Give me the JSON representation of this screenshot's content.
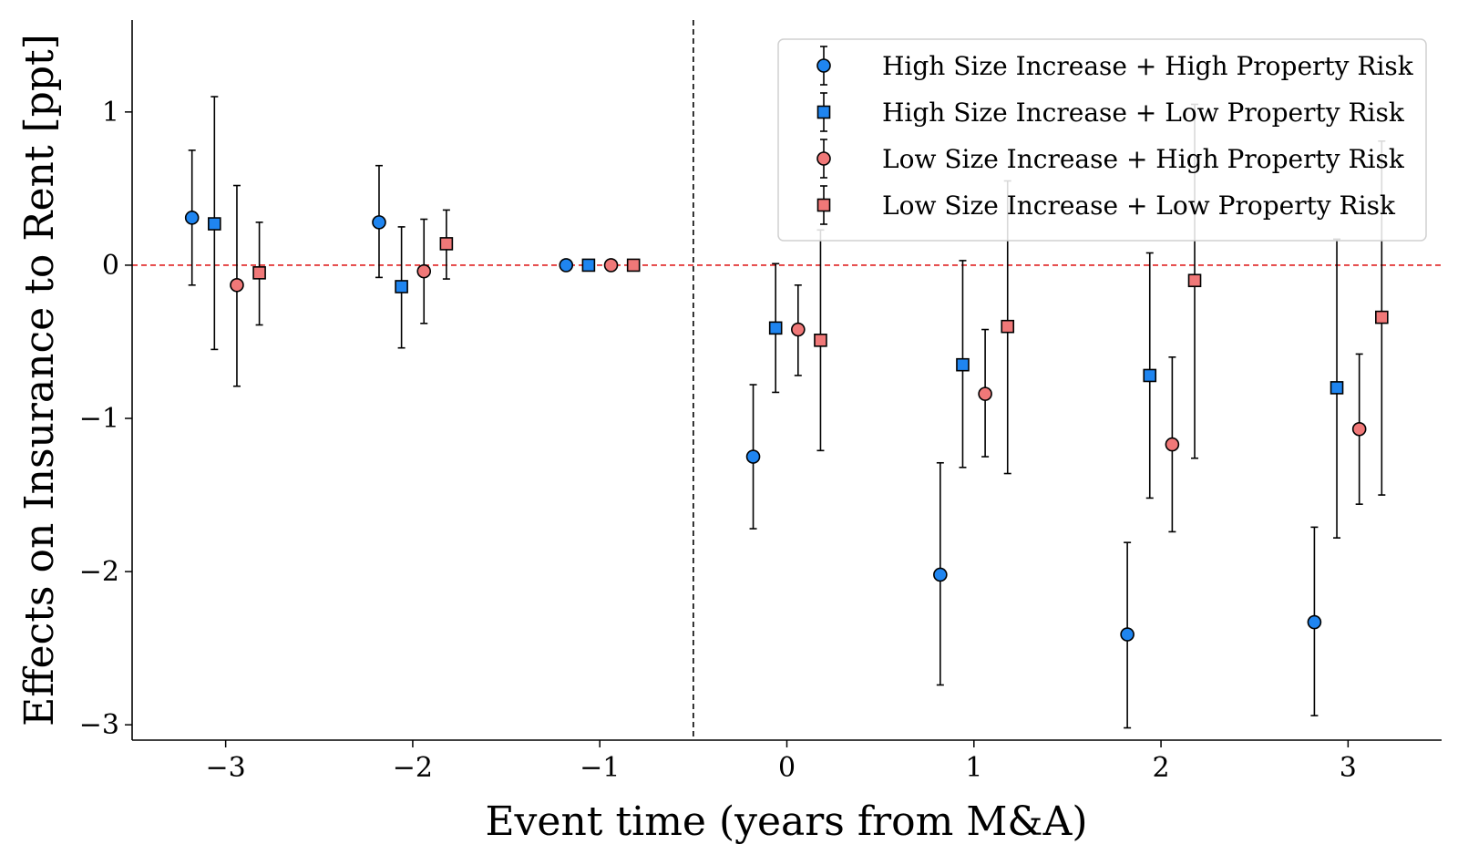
{
  "chart_data": {
    "type": "scatter",
    "subtype": "event-study coefficient plot with error bars",
    "xlabel": "Event time (years from M&A)",
    "ylabel": "Effects on Insurance to Rent [ppt]",
    "xlim": [
      -3.5,
      3.5
    ],
    "ylim": [
      -3.1,
      1.6
    ],
    "xticks": [
      -3,
      -2,
      -1,
      0,
      1,
      2,
      3
    ],
    "xtick_labels": [
      "−3",
      "−2",
      "−1",
      "0",
      "1",
      "2",
      "3"
    ],
    "yticks": [
      -3,
      -2,
      -1,
      0,
      1
    ],
    "ytick_labels": [
      "−3",
      "−2",
      "−1",
      "0",
      "1"
    ],
    "reference_lines": [
      {
        "orientation": "horizontal",
        "value": 0,
        "style": "dashed",
        "color": "#e02020"
      },
      {
        "orientation": "vertical",
        "value": -0.5,
        "style": "dashed",
        "color": "#000000"
      }
    ],
    "grid": false,
    "legend_position": "upper right",
    "series": [
      {
        "name": "High Size Increase + High Property Risk",
        "marker": "circle",
        "color": "#1f85f0",
        "points": [
          {
            "x": -3.18,
            "y": 0.31,
            "lo": -0.13,
            "hi": 0.75
          },
          {
            "x": -2.18,
            "y": 0.28,
            "lo": -0.08,
            "hi": 0.65
          },
          {
            "x": -1.18,
            "y": 0.0,
            "lo": 0.0,
            "hi": 0.0
          },
          {
            "x": -0.18,
            "y": -1.25,
            "lo": -1.72,
            "hi": -0.78
          },
          {
            "x": 0.82,
            "y": -2.02,
            "lo": -2.74,
            "hi": -1.29
          },
          {
            "x": 1.82,
            "y": -2.41,
            "lo": -3.02,
            "hi": -1.81
          },
          {
            "x": 2.82,
            "y": -2.33,
            "lo": -2.94,
            "hi": -1.71
          }
        ]
      },
      {
        "name": "High Size Increase + Low Property Risk",
        "marker": "square",
        "color": "#1f85f0",
        "points": [
          {
            "x": -3.06,
            "y": 0.27,
            "lo": -0.55,
            "hi": 1.1
          },
          {
            "x": -2.06,
            "y": -0.14,
            "lo": -0.54,
            "hi": 0.25
          },
          {
            "x": -1.06,
            "y": 0.0,
            "lo": 0.0,
            "hi": 0.0
          },
          {
            "x": -0.06,
            "y": -0.41,
            "lo": -0.83,
            "hi": 0.01
          },
          {
            "x": 0.94,
            "y": -0.65,
            "lo": -1.32,
            "hi": 0.03
          },
          {
            "x": 1.94,
            "y": -0.72,
            "lo": -1.52,
            "hi": 0.08
          },
          {
            "x": 2.94,
            "y": -0.8,
            "lo": -1.78,
            "hi": 0.17
          }
        ]
      },
      {
        "name": "Low Size Increase + High Property Risk",
        "marker": "circle",
        "color": "#f07878",
        "points": [
          {
            "x": -2.94,
            "y": -0.13,
            "lo": -0.79,
            "hi": 0.52
          },
          {
            "x": -1.94,
            "y": -0.04,
            "lo": -0.38,
            "hi": 0.3
          },
          {
            "x": -0.94,
            "y": 0.0,
            "lo": 0.0,
            "hi": 0.0
          },
          {
            "x": 0.06,
            "y": -0.42,
            "lo": -0.72,
            "hi": -0.13
          },
          {
            "x": 1.06,
            "y": -0.84,
            "lo": -1.25,
            "hi": -0.42
          },
          {
            "x": 2.06,
            "y": -1.17,
            "lo": -1.74,
            "hi": -0.6
          },
          {
            "x": 3.06,
            "y": -1.07,
            "lo": -1.56,
            "hi": -0.58
          }
        ]
      },
      {
        "name": "Low Size Increase + Low Property Risk",
        "marker": "square",
        "color": "#f07878",
        "points": [
          {
            "x": -2.82,
            "y": -0.05,
            "lo": -0.39,
            "hi": 0.28
          },
          {
            "x": -1.82,
            "y": 0.14,
            "lo": -0.09,
            "hi": 0.36
          },
          {
            "x": -0.82,
            "y": 0.0,
            "lo": 0.0,
            "hi": 0.0
          },
          {
            "x": 0.18,
            "y": -0.49,
            "lo": -1.21,
            "hi": 0.23
          },
          {
            "x": 1.18,
            "y": -0.4,
            "lo": -1.36,
            "hi": 0.55
          },
          {
            "x": 2.18,
            "y": -0.1,
            "lo": -1.26,
            "hi": 1.05
          },
          {
            "x": 3.18,
            "y": -0.34,
            "lo": -1.5,
            "hi": 0.81
          }
        ]
      }
    ]
  }
}
